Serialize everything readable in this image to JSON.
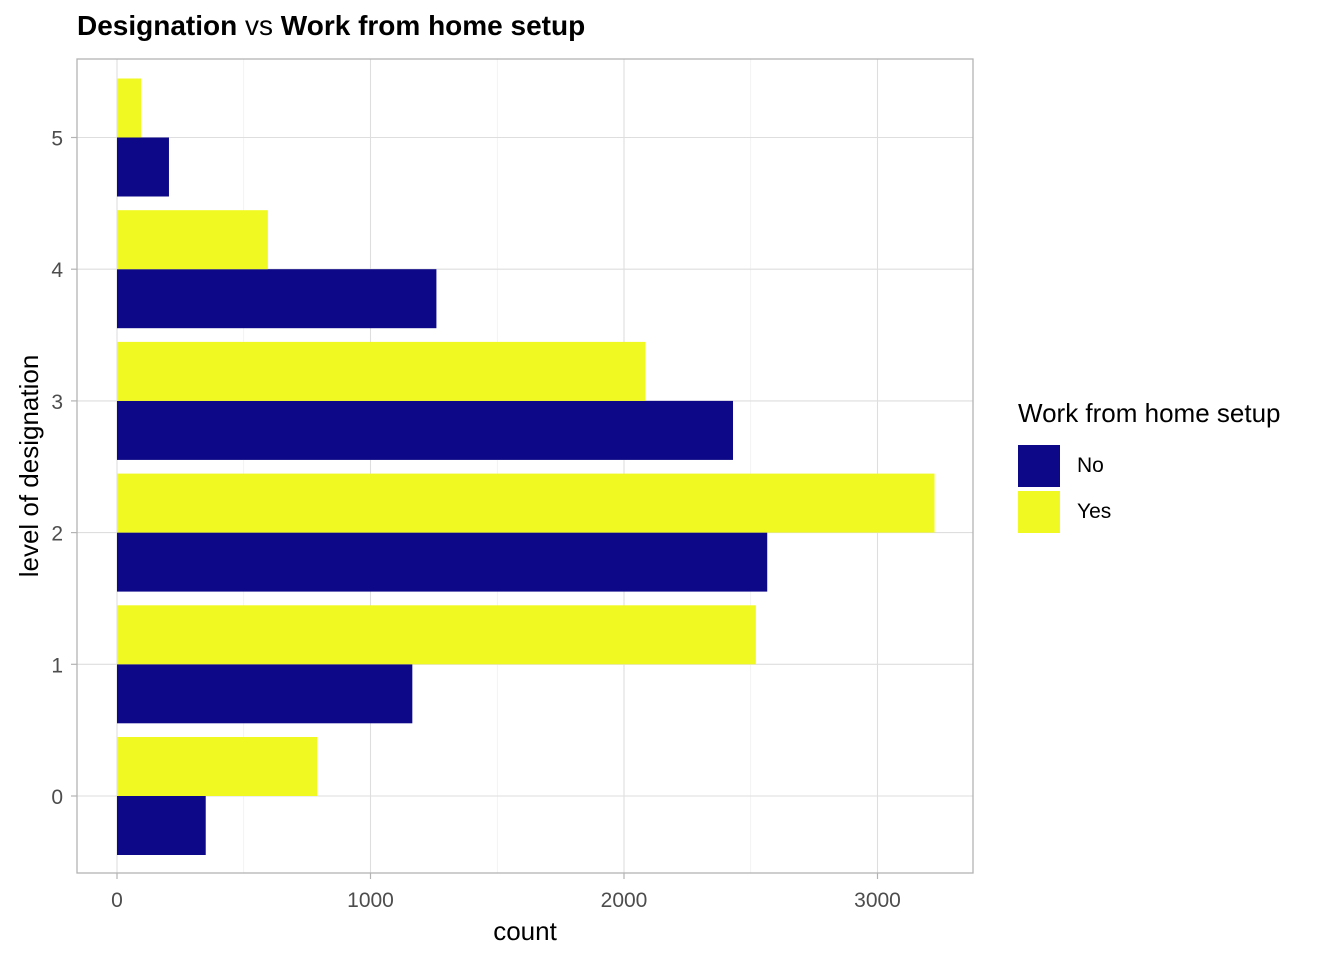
{
  "title": {
    "part1": "Designation",
    "part2": " vs ",
    "part3": "Work from home setup"
  },
  "chart_data": {
    "type": "bar",
    "orientation": "horizontal",
    "title": "Designation vs Work from home setup",
    "xlabel": "count",
    "ylabel": "level of designation",
    "categories": [
      "0",
      "1",
      "2",
      "3",
      "4",
      "5"
    ],
    "xlim": [
      -160,
      3370
    ],
    "xticks": [
      0,
      1000,
      2000,
      3000
    ],
    "grid": true,
    "legend": {
      "title": "Work from home setup",
      "position": "right"
    },
    "series": [
      {
        "name": "No",
        "color": "#0d0887",
        "values": [
          350,
          1165,
          2565,
          2430,
          1260,
          205
        ]
      },
      {
        "name": "Yes",
        "color": "#f0f921",
        "values": [
          790,
          2520,
          3225,
          2085,
          595,
          95
        ]
      }
    ]
  }
}
